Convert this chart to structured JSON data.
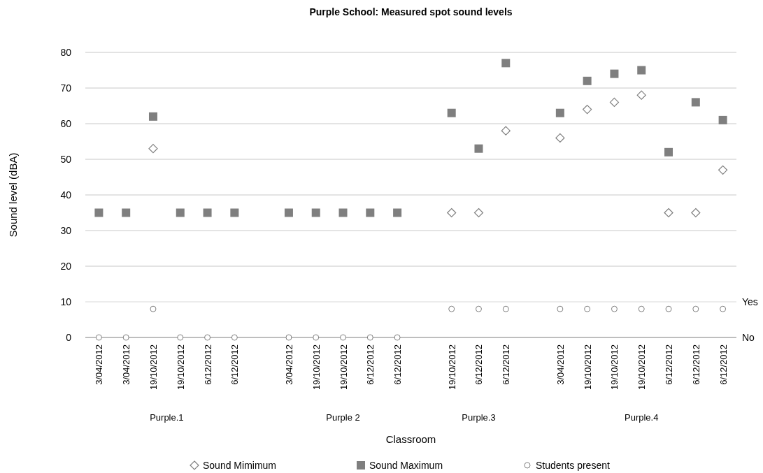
{
  "chart_data": {
    "type": "scatter",
    "title": "Purple School: Measured spot sound levels",
    "xlabel": "Classroom",
    "ylabel": "Sound level (dBA)",
    "categories": [
      "3/04/2012",
      "3/04/2012",
      "19/10/2012",
      "19/10/2012",
      "6/12/2012",
      "6/12/2012",
      null,
      "3/04/2012",
      "19/10/2012",
      "19/10/2012",
      "6/12/2012",
      "6/12/2012",
      null,
      "19/10/2012",
      "6/12/2012",
      "6/12/2012",
      null,
      "3/04/2012",
      "19/10/2012",
      "19/10/2012",
      "19/10/2012",
      "6/12/2012",
      "6/12/2012",
      "6/12/2012"
    ],
    "annotations": [
      "Purple.1",
      "Purple 2",
      "Purple.3",
      "Purple.4",
      "No"
    ],
    "ref_lines": [
      {
        "axis": "y",
        "value": 10,
        "label": "Yes",
        "color": "#d9d9d9"
      }
    ],
    "series": [
      {
        "name": "Sound Mimimum",
        "color": "#7f7f7f",
        "marker": "diamond",
        "values": [
          null,
          null,
          53,
          null,
          null,
          null,
          null,
          null,
          null,
          null,
          null,
          null,
          null,
          35,
          35,
          58,
          null,
          56,
          64,
          66,
          68,
          35,
          35,
          47
        ]
      },
      {
        "name": "Sound Maximum",
        "color": "#7f7f7f",
        "marker": "square",
        "values": [
          35,
          35,
          62,
          35,
          35,
          35,
          null,
          35,
          35,
          35,
          35,
          35,
          null,
          63,
          53,
          77,
          null,
          63,
          72,
          74,
          75,
          52,
          66,
          61
        ]
      },
      {
        "name": "Students present",
        "color": "#7f7f7f",
        "marker": "circle",
        "values": [
          0,
          0,
          8,
          0,
          0,
          0,
          null,
          0,
          0,
          0,
          0,
          0,
          null,
          8,
          8,
          8,
          null,
          8,
          8,
          8,
          8,
          8,
          8,
          8
        ]
      }
    ],
    "ylim": [
      0,
      80
    ],
    "yticks": [
      0,
      10,
      20,
      30,
      40,
      50,
      60,
      70,
      80
    ],
    "grid": "y",
    "legend": "bottom"
  }
}
